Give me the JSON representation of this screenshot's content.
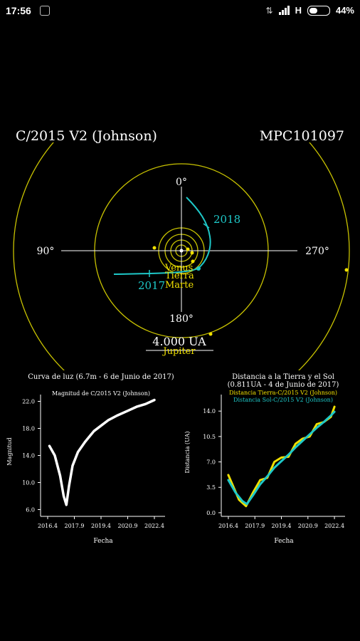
{
  "status_bar": {
    "time": "17:56",
    "network": "H",
    "battery_percent": "44%",
    "battery_level": 0.44,
    "notification_icon": "app-notification-icon",
    "vibrate_icon": "vibrate-icon",
    "signal_icon": "signal-strength-icon",
    "battery_icon": "battery-icon"
  },
  "header": {
    "object_name": "C/2015 V2 (Johnson)",
    "catalog_id": "MPC101097"
  },
  "orbit": {
    "angles": {
      "top": "0°",
      "left": "90°",
      "right": "270°",
      "bottom": "180°"
    },
    "scale_label": "4.000 UA",
    "planets": [
      "Venus",
      "Tierra",
      "Marte",
      "Jupiter"
    ],
    "comet_years": [
      "2018",
      "2017"
    ],
    "colors": {
      "orbit": "#c8c200",
      "comet": "#1ec8c8",
      "planet_label": "#f0e000"
    }
  },
  "chart_data": [
    {
      "type": "line",
      "title": "Curva de luz (6.7m - 6 de Junio de 2017)",
      "subtitle": "Magnitud de C/2015 V2 (Johnson)",
      "xlabel": "Fecha",
      "ylabel": "Magnitud",
      "xlim": [
        2016.0,
        2023.0
      ],
      "ylim": [
        5.0,
        23.0
      ],
      "xticks": [
        2016.4,
        2017.9,
        2019.4,
        2020.9,
        2022.4
      ],
      "yticks": [
        6.0,
        10.0,
        14.0,
        18.0,
        22.0
      ],
      "series": [
        {
          "color": "#ffffff",
          "x": [
            2016.5,
            2016.8,
            2017.1,
            2017.3,
            2017.45,
            2017.6,
            2017.8,
            2018.1,
            2018.5,
            2019.0,
            2019.4,
            2019.8,
            2020.3,
            2020.9,
            2021.4,
            2021.9,
            2022.4
          ],
          "y": [
            15.4,
            14.0,
            11.0,
            8.0,
            6.7,
            9.5,
            12.5,
            14.5,
            16.0,
            17.6,
            18.4,
            19.2,
            19.9,
            20.6,
            21.2,
            21.6,
            22.2
          ]
        }
      ]
    },
    {
      "type": "line",
      "title": "Distancia a la Tierra y el Sol",
      "subtitle": "(0.811UA - 4 de Junio de 2017)",
      "xlabel": "Fecha",
      "ylabel": "Distancia (UA)",
      "xlim": [
        2016.0,
        2023.0
      ],
      "ylim": [
        -0.5,
        15.0
      ],
      "xticks": [
        2016.4,
        2017.9,
        2019.4,
        2020.9,
        2022.4
      ],
      "yticks": [
        0.0,
        3.5,
        7.0,
        10.5,
        14.0
      ],
      "legend_placement": "top",
      "series": [
        {
          "name": "Distancia Tierra-C/2015 V2 (Johnson)",
          "color": "#f0e000",
          "x": [
            2016.4,
            2016.7,
            2017.0,
            2017.4,
            2017.8,
            2018.2,
            2018.6,
            2019.0,
            2019.4,
            2019.8,
            2020.2,
            2020.6,
            2021.0,
            2021.4,
            2021.8,
            2022.2,
            2022.4
          ],
          "y": [
            5.2,
            3.5,
            1.8,
            0.9,
            2.8,
            4.5,
            4.8,
            7.0,
            7.6,
            7.7,
            9.5,
            10.2,
            10.5,
            12.2,
            12.5,
            13.2,
            14.6
          ]
        },
        {
          "name": "Distancia Sol-C/2015 V2 (Johnson)",
          "color": "#1ec8c8",
          "x": [
            2016.4,
            2016.8,
            2017.2,
            2017.45,
            2017.8,
            2018.2,
            2018.6,
            2019.0,
            2019.4,
            2019.8,
            2020.2,
            2020.6,
            2021.0,
            2021.4,
            2021.8,
            2022.2,
            2022.4
          ],
          "y": [
            4.5,
            2.8,
            1.6,
            1.2,
            2.4,
            3.9,
            5.0,
            6.2,
            7.1,
            8.0,
            9.0,
            9.9,
            10.8,
            11.7,
            12.5,
            13.4,
            13.9
          ]
        }
      ]
    }
  ]
}
